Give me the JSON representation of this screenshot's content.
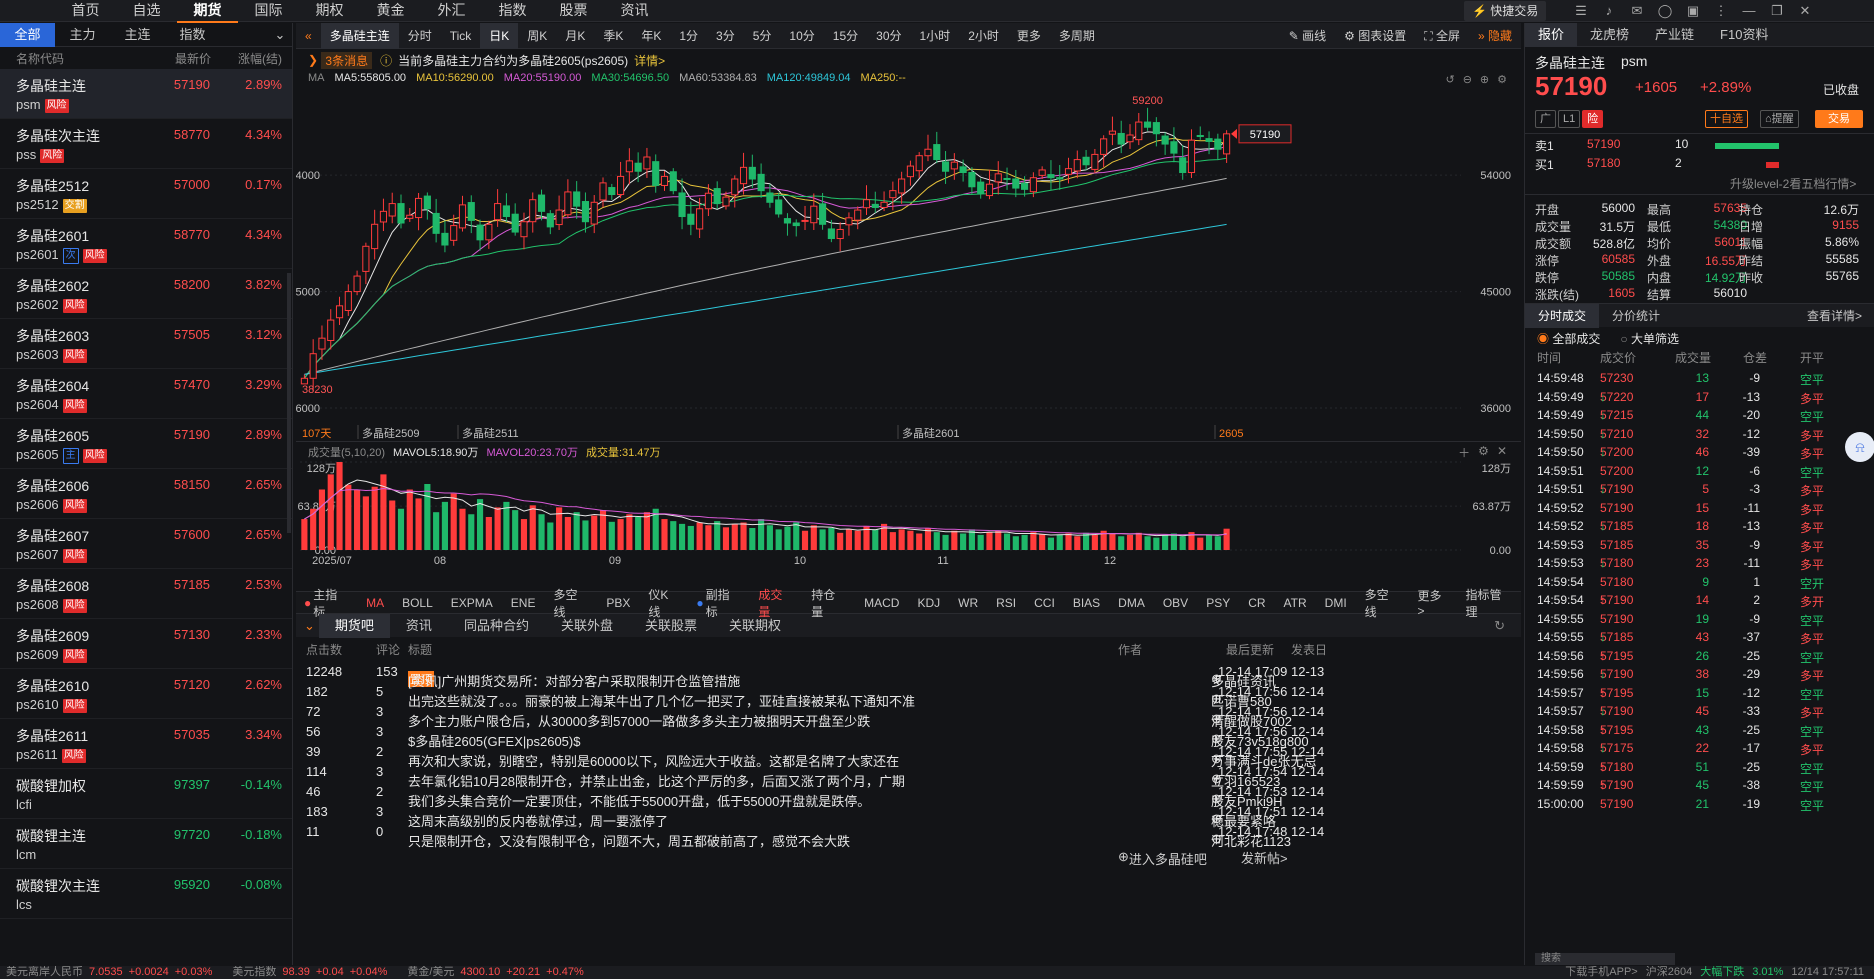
{
  "topnav": {
    "items": [
      "首页",
      "自选",
      "期货",
      "国际",
      "期权",
      "黄金",
      "外汇",
      "指数",
      "股票",
      "资讯"
    ],
    "active": 2,
    "quick_trade": "快捷交易"
  },
  "left": {
    "tabs": [
      "全部",
      "主力",
      "主连",
      "指数"
    ],
    "headers": {
      "name": "名称代码",
      "price": "最新价",
      "pct": "涨幅(结)"
    },
    "items": [
      {
        "name": "多晶硅主连",
        "code": "psm",
        "price": "57190",
        "pct": "2.89%",
        "dir": "up",
        "tags": [
          [
            "风险",
            "r"
          ]
        ],
        "selected": true
      },
      {
        "name": "多晶硅次主连",
        "code": "pss",
        "price": "58770",
        "pct": "4.34%",
        "dir": "up",
        "tags": [
          [
            "风险",
            "r"
          ]
        ]
      },
      {
        "name": "多晶硅2512",
        "code": "ps2512",
        "price": "57000",
        "pct": "0.17%",
        "dir": "up",
        "tags": [
          [
            "交割",
            "y"
          ]
        ]
      },
      {
        "name": "多晶硅2601",
        "code": "ps2601",
        "price": "58770",
        "pct": "4.34%",
        "dir": "up",
        "tags": [
          [
            "次",
            "b"
          ],
          [
            "风险",
            "r"
          ]
        ]
      },
      {
        "name": "多晶硅2602",
        "code": "ps2602",
        "price": "58200",
        "pct": "3.82%",
        "dir": "up",
        "tags": [
          [
            "风险",
            "r"
          ]
        ]
      },
      {
        "name": "多晶硅2603",
        "code": "ps2603",
        "price": "57505",
        "pct": "3.12%",
        "dir": "up",
        "tags": [
          [
            "风险",
            "r"
          ]
        ]
      },
      {
        "name": "多晶硅2604",
        "code": "ps2604",
        "price": "57470",
        "pct": "3.29%",
        "dir": "up",
        "tags": [
          [
            "风险",
            "r"
          ]
        ]
      },
      {
        "name": "多晶硅2605",
        "code": "ps2605",
        "price": "57190",
        "pct": "2.89%",
        "dir": "up",
        "tags": [
          [
            "主",
            "b"
          ],
          [
            "风险",
            "r"
          ]
        ]
      },
      {
        "name": "多晶硅2606",
        "code": "ps2606",
        "price": "58150",
        "pct": "2.65%",
        "dir": "up",
        "tags": [
          [
            "风险",
            "r"
          ]
        ]
      },
      {
        "name": "多晶硅2607",
        "code": "ps2607",
        "price": "57600",
        "pct": "2.65%",
        "dir": "up",
        "tags": [
          [
            "风险",
            "r"
          ]
        ]
      },
      {
        "name": "多晶硅2608",
        "code": "ps2608",
        "price": "57185",
        "pct": "2.53%",
        "dir": "up",
        "tags": [
          [
            "风险",
            "r"
          ]
        ]
      },
      {
        "name": "多晶硅2609",
        "code": "ps2609",
        "price": "57130",
        "pct": "2.33%",
        "dir": "up",
        "tags": [
          [
            "风险",
            "r"
          ]
        ]
      },
      {
        "name": "多晶硅2610",
        "code": "ps2610",
        "price": "57120",
        "pct": "2.62%",
        "dir": "up",
        "tags": [
          [
            "风险",
            "r"
          ]
        ]
      },
      {
        "name": "多晶硅2611",
        "code": "ps2611",
        "price": "57035",
        "pct": "3.34%",
        "dir": "up",
        "tags": [
          [
            "风险",
            "r"
          ]
        ]
      },
      {
        "name": "碳酸锂加权",
        "code": "lcfi",
        "price": "97397",
        "pct": "-0.14%",
        "dir": "down",
        "tags": []
      },
      {
        "name": "碳酸锂主连",
        "code": "lcm",
        "price": "97720",
        "pct": "-0.18%",
        "dir": "down",
        "tags": []
      },
      {
        "name": "碳酸锂次主连",
        "code": "lcs",
        "price": "95920",
        "pct": "-0.08%",
        "dir": "down",
        "tags": []
      }
    ]
  },
  "toolbar": {
    "title": "多晶硅主连",
    "periods": [
      "分时",
      "Tick",
      "日K",
      "周K",
      "月K",
      "季K",
      "年K",
      "1分",
      "3分",
      "5分",
      "10分",
      "15分",
      "30分",
      "1小时",
      "2小时",
      "更多",
      "多周期"
    ],
    "active": "日K",
    "tools": [
      "画线",
      "图表设置",
      "全屏",
      "隐藏"
    ]
  },
  "news": {
    "count": "3条消息",
    "text": "当前多晶硅主力合约为多晶硅2605(ps2605)",
    "link": "详情>"
  },
  "ma": {
    "label": "MA",
    "items": [
      {
        "t": "MA5:55805.00",
        "c": "#e6e6e6"
      },
      {
        "t": "MA10:56290.00",
        "c": "#e8c33b"
      },
      {
        "t": "MA20:55190.00",
        "c": "#d65ad6"
      },
      {
        "t": "MA30:54696.50",
        "c": "#22c36b"
      },
      {
        "t": "MA60:53384.83",
        "c": "#b0b0b0"
      },
      {
        "t": "MA120:49849.04",
        "c": "#2ec7d9"
      },
      {
        "t": "MA250:--",
        "c": "#e8c33b"
      }
    ]
  },
  "chart_data": {
    "type": "candlestick",
    "series_name": "多晶硅主连",
    "y_ticks": [
      36000,
      45000,
      54000
    ],
    "ylim": [
      35000,
      60500
    ],
    "max_label": "59200",
    "min_label": "38230",
    "last": "57190",
    "days_label": "107天",
    "contract_labels": [
      "多晶硅2509",
      "多晶硅2511",
      "多晶硅2601",
      "2605"
    ],
    "x_labels": [
      "2025/07",
      "08",
      "09",
      "10",
      "11",
      "12"
    ],
    "closes": [
      38300,
      40200,
      41400,
      42800,
      43900,
      45000,
      46200,
      48500,
      50200,
      51200,
      51800,
      50300,
      50900,
      52200,
      51400,
      49500,
      48600,
      50100,
      51700,
      50500,
      49000,
      50200,
      51800,
      50800,
      49600,
      50400,
      52100,
      51200,
      50000,
      51300,
      52700,
      51600,
      50400,
      51900,
      53400,
      52500,
      53900,
      55100,
      54300,
      55400,
      53200,
      53900,
      52800,
      50800,
      50200,
      51400,
      52600,
      51800,
      52300,
      53700,
      54600,
      53700,
      52800,
      51900,
      51000,
      50300,
      50100,
      50500,
      51600,
      50200,
      49100,
      49800,
      50700,
      51300,
      52100,
      51500,
      51900,
      52800,
      53700,
      54700,
      55500,
      56000,
      55200,
      54300,
      55000,
      54200,
      53100,
      52600,
      53300,
      54100,
      53700,
      53000,
      52900,
      53800,
      54400,
      53800,
      53700,
      54500,
      55200,
      54800,
      55600,
      56800,
      57400,
      56400,
      57100,
      58100,
      57700,
      57200,
      56400,
      55700,
      54200,
      56700,
      57000,
      56600,
      56000,
      57190
    ],
    "volume": {
      "ylim": [
        0,
        128
      ],
      "ticks": [
        "128万",
        "63.87万",
        "0.00"
      ],
      "ma_labels": [
        {
          "t": "成交量(5,10,20)",
          "c": "#8a8a8a"
        },
        {
          "t": "MAVOL5:18.90万",
          "c": "#e6e6e6"
        },
        {
          "t": "MAVOL20:23.70万",
          "c": "#d65ad6"
        },
        {
          "t": "成交量:31.47万",
          "c": "#e8c33b"
        }
      ],
      "values": [
        45,
        60,
        88,
        110,
        128,
        95,
        88,
        78,
        92,
        110,
        72,
        60,
        88,
        75,
        96,
        55,
        70,
        82,
        60,
        52,
        74,
        48,
        62,
        70,
        58,
        45,
        65,
        52,
        40,
        62,
        48,
        55,
        43,
        50,
        58,
        41,
        45,
        52,
        48,
        55,
        60,
        45,
        42,
        38,
        35,
        40,
        36,
        42,
        33,
        38,
        40,
        32,
        45,
        36,
        30,
        34,
        40,
        28,
        36,
        30,
        32,
        25,
        30,
        28,
        35,
        30,
        38,
        26,
        30,
        28,
        24,
        32,
        26,
        22,
        28,
        24,
        30,
        22,
        26,
        28,
        24,
        20,
        22,
        26,
        23,
        18,
        22,
        24,
        20,
        25,
        22,
        28,
        24,
        20,
        22,
        25,
        20,
        18,
        22,
        24,
        20,
        26,
        18,
        22,
        20,
        31
      ]
    }
  },
  "indicators": {
    "main_label": "主指标",
    "main": [
      "MA",
      "BOLL",
      "EXPMA",
      "ENE",
      "多空线",
      "PBX",
      "仪K线"
    ],
    "sub_label": "副指标",
    "sub": [
      "成交量",
      "持仓量",
      "MACD",
      "KDJ",
      "WR",
      "RSI",
      "CCI",
      "BIAS",
      "DMA",
      "OBV",
      "PSY",
      "CR",
      "ATR",
      "DMI",
      "多空线",
      "更多>"
    ],
    "manage": "指标管理"
  },
  "infotabs": [
    "期货吧",
    "资讯",
    "同品种合约",
    "关联外盘",
    "关联股票",
    "关联期权"
  ],
  "posts": {
    "headers": [
      "点击数",
      "评论",
      "标题",
      "作者",
      "最后更新",
      "发表日"
    ],
    "rows": [
      [
        "12248",
        "153",
        "置顶",
        "[资讯]广州期货交易所：对部分客户采取限制开仓监管措施",
        "多晶硅资讯",
        "12-14 17:09",
        "12-13"
      ],
      [
        "182",
        "5",
        "",
        "出完这些就没了。。。丽豪的被上海某牛出了几个亿一把买了，亚硅直接被某私下通知不准",
        "匹诺曹580",
        "12-14 17:56",
        "12-14"
      ],
      [
        "72",
        "3",
        "",
        "多个主力账户限仓后，从30000多到57000一路做多多头主力被捆明天开盘至少跌",
        "清醒做股7002",
        "12-14 17:56",
        "12-14"
      ],
      [
        "56",
        "3",
        "",
        "$多晶硅2605(GFEX|ps2605)$",
        "股友73v518g800",
        "12-14 17:56",
        "12-14"
      ],
      [
        "39",
        "2",
        "",
        "再次和大家说，别瞎空，特别是60000以下，风险远大于收益。这都是名牌了大家还在",
        "万事满斗de张无忌",
        "12-14 17:55",
        "12-14"
      ],
      [
        "114",
        "3",
        "",
        "去年氯化铝10月28限制开仓，并禁止出金，比这个严厉的多，后面又涨了两个月，广期",
        "立羽165523",
        "12-14 17:54",
        "12-14"
      ],
      [
        "46",
        "2",
        "",
        "我们多头集合竞价一定要顶住，不能低于55000开盘，低于55000开盘就是跌停。",
        "股友Pmki9H",
        "12-14 17:53",
        "12-14"
      ],
      [
        "183",
        "3",
        "",
        "这周末高级别的反内卷就停过，周一要涨停了",
        "稳最要紧咯",
        "12-14 17:51",
        "12-14"
      ],
      [
        "11",
        "0",
        "",
        "只是限制开仓，又没有限制平仓，问题不大，周五都破前高了，感觉不会大跌",
        "河北彩花1123",
        "12-14 17:48",
        "12-14"
      ]
    ],
    "footer_link": "进入多晶硅吧",
    "post_btn": "发新帖>"
  },
  "right": {
    "tabs": [
      "报价",
      "龙虎榜",
      "产业链",
      "F10资料"
    ],
    "name": "多晶硅主连",
    "code": "psm",
    "price": "57190",
    "chg": "+1605",
    "pct": "+2.89%",
    "status": "已收盘",
    "tags": [
      "广",
      "L1",
      "险"
    ],
    "fav": "十自选",
    "alert": "提醒",
    "trade": "交易",
    "sell1": {
      "label": "卖1",
      "price": "57190",
      "vol": "10"
    },
    "buy1": {
      "label": "买1",
      "price": "57180",
      "vol": "2"
    },
    "upgrade": "升级level-2看五档行情>",
    "stats": [
      [
        "开盘",
        "56000",
        "",
        "最高",
        "57635",
        "red",
        "持仓",
        "12.6万",
        ""
      ],
      [
        "成交量",
        "31.5万",
        "",
        "最低",
        "54380",
        "green",
        "日增",
        "9155",
        "red"
      ],
      [
        "成交额",
        "528.8亿",
        "",
        "均价",
        "56011",
        "red",
        "振幅",
        "5.86%",
        ""
      ],
      [
        "涨停",
        "60585",
        "red",
        "外盘",
        "16.55万",
        "red",
        "昨结",
        "55585",
        ""
      ],
      [
        "跌停",
        "50585",
        "green",
        "内盘",
        "14.92万",
        "green",
        "昨收",
        "55765",
        ""
      ],
      [
        "涨跌(结)",
        "1605",
        "red",
        "结算",
        "56010",
        "",
        "",
        "",
        " "
      ]
    ],
    "trade_tabs": [
      "分时成交",
      "分价统计"
    ],
    "detail": "查看详情>",
    "filters": [
      "全部成交",
      "大单筛选"
    ],
    "trade_headers": [
      "时间",
      "成交价",
      "成交量",
      "仓差",
      "开平"
    ],
    "trades": [
      [
        "14:59:48",
        "57230",
        "",
        "13",
        "-9",
        "空平",
        "g"
      ],
      [
        "14:59:49",
        "57220",
        "↓",
        "17",
        "-13",
        "多平",
        "r"
      ],
      [
        "14:59:49",
        "57215",
        "↓",
        "44",
        "-20",
        "空平",
        "g"
      ],
      [
        "14:59:50",
        "57210",
        "↓",
        "32",
        "-12",
        "多平",
        "r"
      ],
      [
        "14:59:50",
        "57200",
        "↓",
        "46",
        "-39",
        "多平",
        "r"
      ],
      [
        "14:59:51",
        "57200",
        "",
        "12",
        "-6",
        "空平",
        "g"
      ],
      [
        "14:59:51",
        "57190",
        "↓",
        "5",
        "-3",
        "多平",
        "r"
      ],
      [
        "14:59:52",
        "57190",
        "",
        "15",
        "-11",
        "多平",
        "r"
      ],
      [
        "14:59:52",
        "57185",
        "↓",
        "18",
        "-13",
        "多平",
        "r"
      ],
      [
        "14:59:53",
        "57185",
        "",
        "35",
        "-9",
        "多平",
        "r"
      ],
      [
        "14:59:53",
        "57180",
        "↓",
        "23",
        "-11",
        "多平",
        "r"
      ],
      [
        "14:59:54",
        "57180",
        "",
        "9",
        "1",
        "空开",
        "g"
      ],
      [
        "14:59:54",
        "57190",
        "↑",
        "14",
        "2",
        "多开",
        "r"
      ],
      [
        "14:59:55",
        "57190",
        "",
        "19",
        "-9",
        "空平",
        "g"
      ],
      [
        "14:59:55",
        "57185",
        "↓",
        "43",
        "-37",
        "多平",
        "r"
      ],
      [
        "14:59:56",
        "57195",
        "↑",
        "26",
        "-25",
        "空平",
        "g"
      ],
      [
        "14:59:56",
        "57190",
        "↓",
        "38",
        "-29",
        "多平",
        "r"
      ],
      [
        "14:59:57",
        "57195",
        "↑",
        "15",
        "-12",
        "空平",
        "g"
      ],
      [
        "14:59:57",
        "57190",
        "↓",
        "45",
        "-33",
        "多平",
        "r"
      ],
      [
        "14:59:58",
        "57195",
        "↑",
        "43",
        "-25",
        "空平",
        "g"
      ],
      [
        "14:59:58",
        "57175",
        "↓",
        "22",
        "-17",
        "多平",
        "r"
      ],
      [
        "14:59:59",
        "57180",
        "↑",
        "51",
        "-25",
        "空平",
        "g"
      ],
      [
        "14:59:59",
        "57190",
        "↑",
        "45",
        "-38",
        "空平",
        "g"
      ],
      [
        "15:00:00",
        "57190",
        "",
        "21",
        "-19",
        "空平",
        "g"
      ]
    ],
    "search": "搜索"
  },
  "bottom": {
    "items": [
      "美元离岸人民币",
      "7.0535",
      "+0.0024",
      "+0.03%",
      "美元指数",
      "98.39",
      "+0.04",
      "+0.04%",
      "黄金/美元",
      "4300.10",
      "+20.21",
      "+0.47%"
    ],
    "right": [
      "下载手机APP>",
      "沪深2604",
      "大幅下跌",
      "3.01%",
      "12/14 17:57:11"
    ]
  }
}
